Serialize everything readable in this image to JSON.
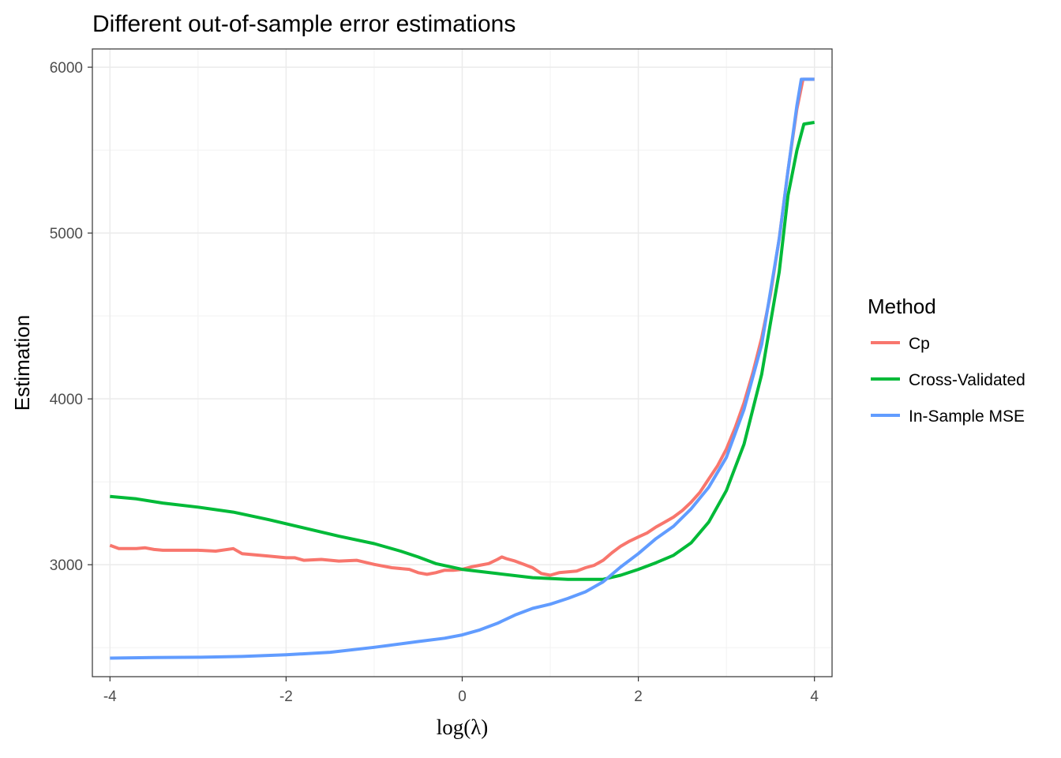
{
  "chart_data": {
    "type": "line",
    "title": "Different out-of-sample error estimations",
    "xlabel": "log(λ)",
    "ylabel": "Estimation",
    "xlim": [
      -4.2,
      4.2
    ],
    "ylim": [
      2325,
      6110
    ],
    "x_ticks": [
      -4,
      -2,
      0,
      2,
      4
    ],
    "x_tick_labels": [
      "-4",
      "-2",
      "0",
      "2",
      "4"
    ],
    "y_ticks": [
      3000,
      4000,
      5000,
      6000
    ],
    "y_tick_labels": [
      "3000",
      "4000",
      "5000",
      "6000"
    ],
    "y_minor_ticks": [
      2500,
      3500,
      4500,
      5500
    ],
    "grid": true,
    "legend": {
      "title": "Method",
      "placement": "right",
      "entries": [
        "Cp",
        "Cross-Validated",
        "In-Sample MSE"
      ]
    },
    "series": [
      {
        "name": "Cp",
        "color": "#F8766D",
        "points": [
          [
            -4.0,
            3117
          ],
          [
            -3.9,
            3097
          ],
          [
            -3.7,
            3097
          ],
          [
            -3.6,
            3102
          ],
          [
            -3.5,
            3092
          ],
          [
            -3.4,
            3087
          ],
          [
            -3.2,
            3087
          ],
          [
            -3.0,
            3087
          ],
          [
            -2.8,
            3082
          ],
          [
            -2.6,
            3097
          ],
          [
            -2.5,
            3067
          ],
          [
            -2.4,
            3062
          ],
          [
            -2.2,
            3052
          ],
          [
            -2.0,
            3042
          ],
          [
            -1.9,
            3042
          ],
          [
            -1.8,
            3027
          ],
          [
            -1.6,
            3032
          ],
          [
            -1.4,
            3022
          ],
          [
            -1.2,
            3027
          ],
          [
            -1.0,
            3002
          ],
          [
            -0.8,
            2982
          ],
          [
            -0.6,
            2972
          ],
          [
            -0.5,
            2952
          ],
          [
            -0.4,
            2942
          ],
          [
            -0.3,
            2952
          ],
          [
            -0.2,
            2967
          ],
          [
            -0.1,
            2967
          ],
          [
            0.0,
            2972
          ],
          [
            0.1,
            2987
          ],
          [
            0.2,
            2997
          ],
          [
            0.3,
            3007
          ],
          [
            0.4,
            3032
          ],
          [
            0.45,
            3047
          ],
          [
            0.5,
            3037
          ],
          [
            0.6,
            3022
          ],
          [
            0.7,
            3002
          ],
          [
            0.8,
            2982
          ],
          [
            0.9,
            2947
          ],
          [
            1.0,
            2937
          ],
          [
            1.1,
            2952
          ],
          [
            1.2,
            2957
          ],
          [
            1.3,
            2962
          ],
          [
            1.4,
            2982
          ],
          [
            1.5,
            2997
          ],
          [
            1.6,
            3027
          ],
          [
            1.7,
            3072
          ],
          [
            1.8,
            3112
          ],
          [
            1.9,
            3142
          ],
          [
            2.0,
            3167
          ],
          [
            2.1,
            3192
          ],
          [
            2.2,
            3227
          ],
          [
            2.3,
            3257
          ],
          [
            2.4,
            3287
          ],
          [
            2.5,
            3327
          ],
          [
            2.6,
            3377
          ],
          [
            2.7,
            3437
          ],
          [
            2.8,
            3517
          ],
          [
            2.9,
            3597
          ],
          [
            3.0,
            3697
          ],
          [
            3.1,
            3827
          ],
          [
            3.2,
            3977
          ],
          [
            3.3,
            4157
          ],
          [
            3.4,
            4367
          ],
          [
            3.5,
            4627
          ],
          [
            3.6,
            4967
          ],
          [
            3.7,
            5377
          ],
          [
            3.8,
            5747
          ],
          [
            3.87,
            5927
          ],
          [
            4.0,
            5927
          ]
        ]
      },
      {
        "name": "Cross-Validated",
        "color": "#00BA38",
        "points": [
          [
            -4.0,
            3412
          ],
          [
            -3.7,
            3397
          ],
          [
            -3.4,
            3372
          ],
          [
            -3.0,
            3347
          ],
          [
            -2.6,
            3317
          ],
          [
            -2.2,
            3272
          ],
          [
            -1.8,
            3222
          ],
          [
            -1.4,
            3172
          ],
          [
            -1.0,
            3127
          ],
          [
            -0.7,
            3082
          ],
          [
            -0.5,
            3047
          ],
          [
            -0.3,
            3007
          ],
          [
            0.0,
            2972
          ],
          [
            0.4,
            2947
          ],
          [
            0.8,
            2922
          ],
          [
            1.2,
            2912
          ],
          [
            1.6,
            2912
          ],
          [
            1.8,
            2937
          ],
          [
            2.0,
            2972
          ],
          [
            2.2,
            3012
          ],
          [
            2.4,
            3057
          ],
          [
            2.6,
            3132
          ],
          [
            2.8,
            3257
          ],
          [
            3.0,
            3447
          ],
          [
            3.2,
            3727
          ],
          [
            3.4,
            4147
          ],
          [
            3.6,
            4767
          ],
          [
            3.7,
            5227
          ],
          [
            3.8,
            5497
          ],
          [
            3.88,
            5657
          ],
          [
            4.0,
            5667
          ]
        ]
      },
      {
        "name": "In-Sample MSE",
        "color": "#619CFF",
        "points": [
          [
            -4.0,
            2437
          ],
          [
            -3.5,
            2440
          ],
          [
            -3.0,
            2442
          ],
          [
            -2.5,
            2447
          ],
          [
            -2.0,
            2457
          ],
          [
            -1.5,
            2472
          ],
          [
            -1.0,
            2502
          ],
          [
            -0.5,
            2537
          ],
          [
            -0.2,
            2557
          ],
          [
            0.0,
            2577
          ],
          [
            0.2,
            2607
          ],
          [
            0.4,
            2647
          ],
          [
            0.6,
            2697
          ],
          [
            0.8,
            2737
          ],
          [
            1.0,
            2762
          ],
          [
            1.2,
            2797
          ],
          [
            1.4,
            2837
          ],
          [
            1.6,
            2897
          ],
          [
            1.8,
            2987
          ],
          [
            2.0,
            3067
          ],
          [
            2.2,
            3157
          ],
          [
            2.4,
            3232
          ],
          [
            2.6,
            3337
          ],
          [
            2.8,
            3467
          ],
          [
            3.0,
            3647
          ],
          [
            3.2,
            3937
          ],
          [
            3.4,
            4327
          ],
          [
            3.6,
            4967
          ],
          [
            3.7,
            5377
          ],
          [
            3.8,
            5767
          ],
          [
            3.85,
            5927
          ],
          [
            4.0,
            5927
          ]
        ]
      }
    ]
  }
}
